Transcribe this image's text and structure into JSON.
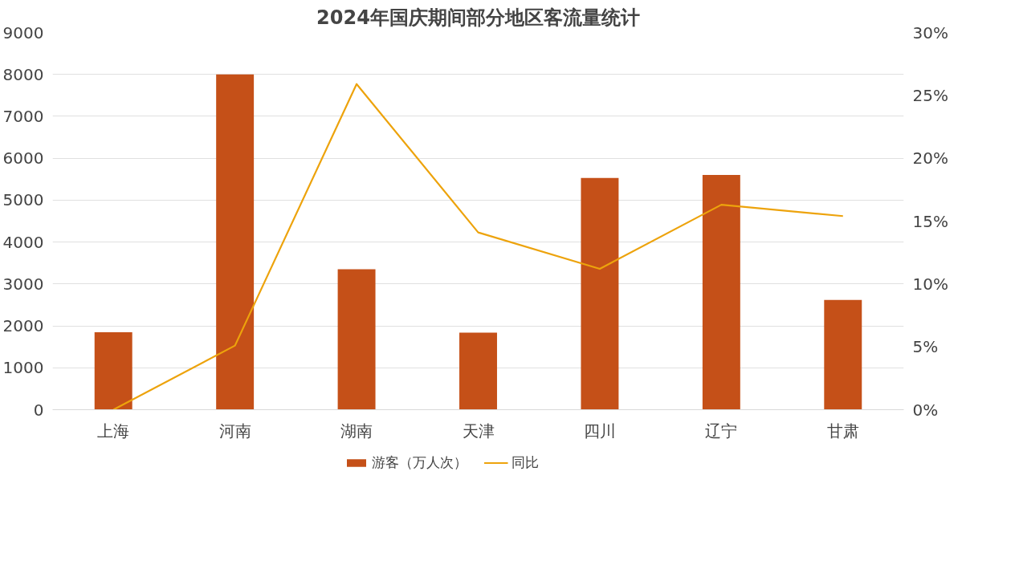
{
  "chart_data": {
    "type": "bar",
    "title": "2024年国庆期间部分地区客流量统计",
    "categories": [
      "上海",
      "河南",
      "湖南",
      "天津",
      "四川",
      "辽宁",
      "甘肃"
    ],
    "series": [
      {
        "name": "游客（万人次）",
        "color": "#c55018",
        "values": [
          1850,
          8000,
          3350,
          1840,
          5530,
          5600,
          2620
        ]
      },
      {
        "name": "同比",
        "type": "line",
        "axis": "y2",
        "color": "#eda30c",
        "values": [
          0,
          5.1,
          25.9,
          14.1,
          11.2,
          16.3,
          15.4
        ]
      }
    ],
    "ylim": [
      0,
      9000
    ],
    "yticks": [
      0,
      1000,
      2000,
      3000,
      4000,
      5000,
      6000,
      7000,
      8000,
      9000
    ],
    "y2lim": [
      0,
      30
    ],
    "y2ticks": [
      {
        "value": 0,
        "label": "0%"
      },
      {
        "value": 5,
        "label": "5%"
      },
      {
        "value": 10,
        "label": "10%"
      },
      {
        "value": 15,
        "label": "15%"
      },
      {
        "value": 20,
        "label": "20%"
      },
      {
        "value": 25,
        "label": "25%"
      },
      {
        "value": 30,
        "label": "30%"
      }
    ],
    "grid": "y",
    "legend": "bottom",
    "marker": "none"
  }
}
